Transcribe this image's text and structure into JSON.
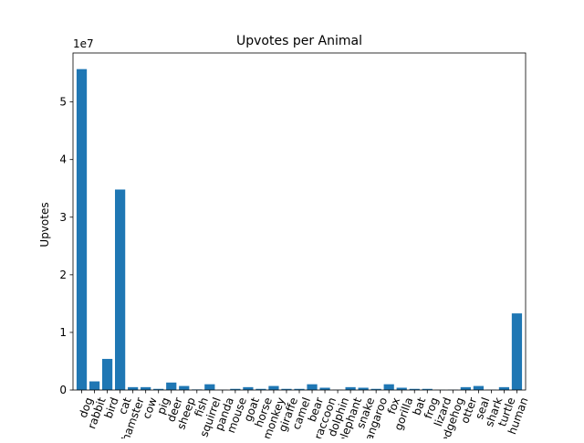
{
  "chart_data": {
    "type": "bar",
    "title": "Upvotes per Animal",
    "xlabel": "",
    "ylabel": "Upvotes",
    "y_offset_label": "1e7",
    "ylim": [
      0,
      58500000.0
    ],
    "y_ticks": [
      0,
      1,
      2,
      3,
      4,
      5
    ],
    "y_tick_scale": 10000000,
    "x_tick_rotation": 70,
    "bar_color": "#1f77b4",
    "categories": [
      "dog",
      "rabbit",
      "bird",
      "cat",
      "hamster",
      "cow",
      "pig",
      "deer",
      "sheep",
      "fish",
      "squirrel",
      "panda",
      "mouse",
      "goat",
      "horse",
      "monkey",
      "giraffe",
      "camel",
      "bear",
      "raccoon",
      "dolphin",
      "elephant",
      "snake",
      "kangaroo",
      "fox",
      "gorilla",
      "bat",
      "frog",
      "lizard",
      "hedgehog",
      "otter",
      "seal",
      "shark",
      "turtle",
      "human"
    ],
    "values": [
      55700000,
      1500000,
      5400000,
      34800000,
      500000,
      500000,
      200000,
      1300000,
      700000,
      100000,
      1000000,
      50000,
      200000,
      500000,
      200000,
      700000,
      200000,
      200000,
      1000000,
      400000,
      50000,
      500000,
      400000,
      200000,
      1000000,
      400000,
      200000,
      200000,
      30000,
      50000,
      500000,
      700000,
      50000,
      500000,
      13300000
    ]
  }
}
